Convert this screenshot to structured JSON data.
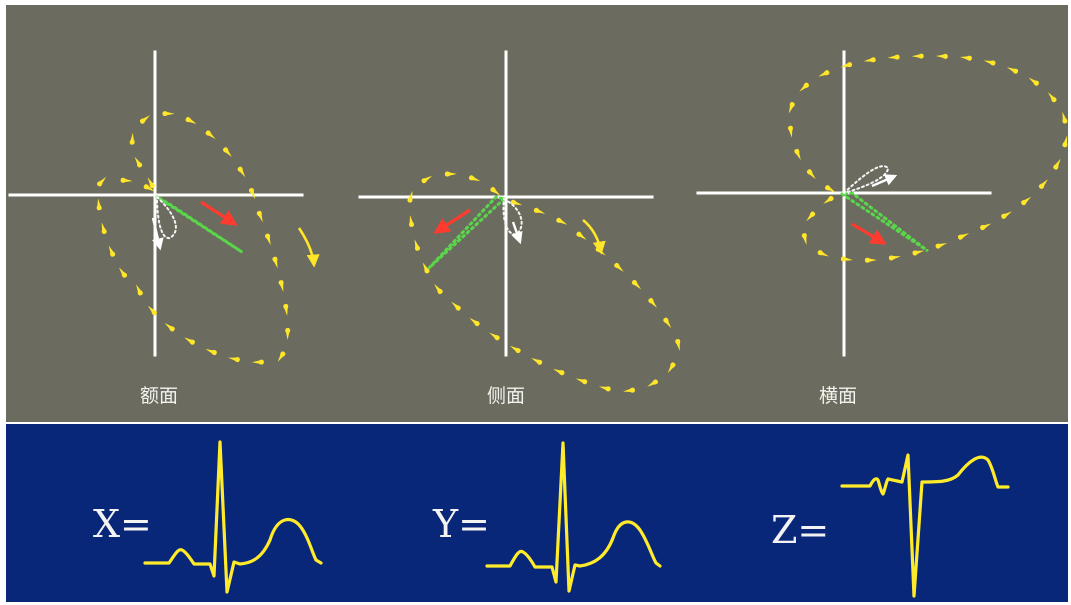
{
  "planes": [
    {
      "id": "frontal",
      "label": "额面"
    },
    {
      "id": "sagittal",
      "label": "侧面"
    },
    {
      "id": "horizontal",
      "label": "横面"
    }
  ],
  "waves": [
    {
      "id": "x",
      "label": "X="
    },
    {
      "id": "y",
      "label": "Y="
    },
    {
      "id": "z",
      "label": "Z="
    }
  ],
  "colors": {
    "top_background": "#6b6c5f",
    "bottom_background": "#092778",
    "axis": "#ffffff",
    "loop_dots": "#ffe629",
    "waveform": "#ffeb2a",
    "dashed_vector": "#59d64a",
    "direction_arrow": "#ff3b2f"
  }
}
